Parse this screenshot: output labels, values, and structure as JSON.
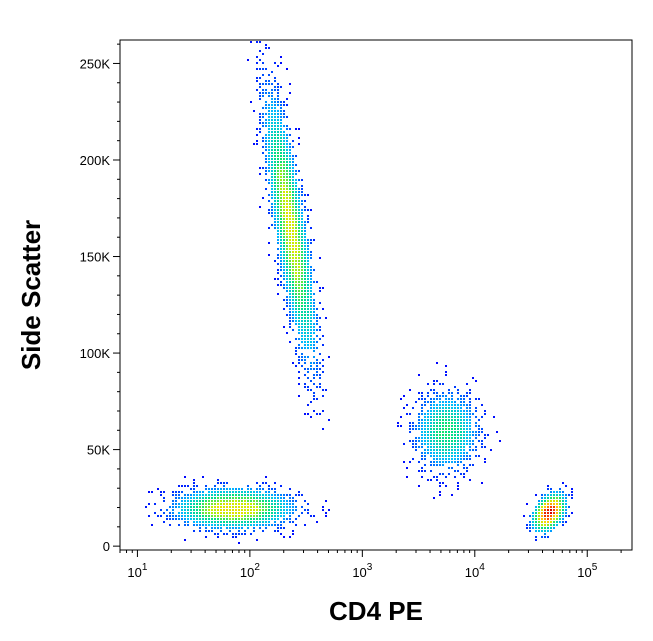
{
  "chart_data": {
    "type": "scatter",
    "subtype": "flow-cytometry density dot plot (pseudocolor)",
    "xlabel": "CD4 PE",
    "ylabel": "Side Scatter",
    "x_scale": "log",
    "x_range": [
      7,
      250000
    ],
    "y_range": [
      -2000,
      262144
    ],
    "x_ticks": [
      {
        "value": 10,
        "base": "10",
        "exp": "1"
      },
      {
        "value": 100,
        "base": "10",
        "exp": "2"
      },
      {
        "value": 1000,
        "base": "10",
        "exp": "3"
      },
      {
        "value": 10000,
        "base": "10",
        "exp": "4"
      },
      {
        "value": 100000,
        "base": "10",
        "exp": "5"
      }
    ],
    "y_ticks": [
      {
        "value": 0,
        "label": "0"
      },
      {
        "value": 50000,
        "label": "50K"
      },
      {
        "value": 100000,
        "label": "100K"
      },
      {
        "value": 150000,
        "label": "150K"
      },
      {
        "value": 200000,
        "label": "200K"
      },
      {
        "value": 250000,
        "label": "250K"
      }
    ],
    "color_scale": [
      "#0000ff",
      "#00bfff",
      "#00e07a",
      "#c8f000",
      "#ffd000",
      "#ff5000",
      "#d40000"
    ],
    "populations": [
      {
        "center_x": 225,
        "center_y": 165000,
        "spread_log_x": 0.13,
        "spread_y": 40000,
        "tilt": -0.8,
        "peak_density": 0.55
      },
      {
        "center_x": 70,
        "center_y": 20000,
        "spread_log_x": 0.3,
        "spread_y": 6000,
        "tilt": 0,
        "peak_density": 0.6
      },
      {
        "center_x": 5500,
        "center_y": 60000,
        "spread_log_x": 0.17,
        "spread_y": 12000,
        "tilt": 0,
        "peak_density": 0.35
      },
      {
        "center_x": 45000,
        "center_y": 18000,
        "spread_log_x": 0.08,
        "spread_y": 5500,
        "tilt": 0.4,
        "peak_density": 1.0
      }
    ],
    "grid": false,
    "legend": "none"
  }
}
